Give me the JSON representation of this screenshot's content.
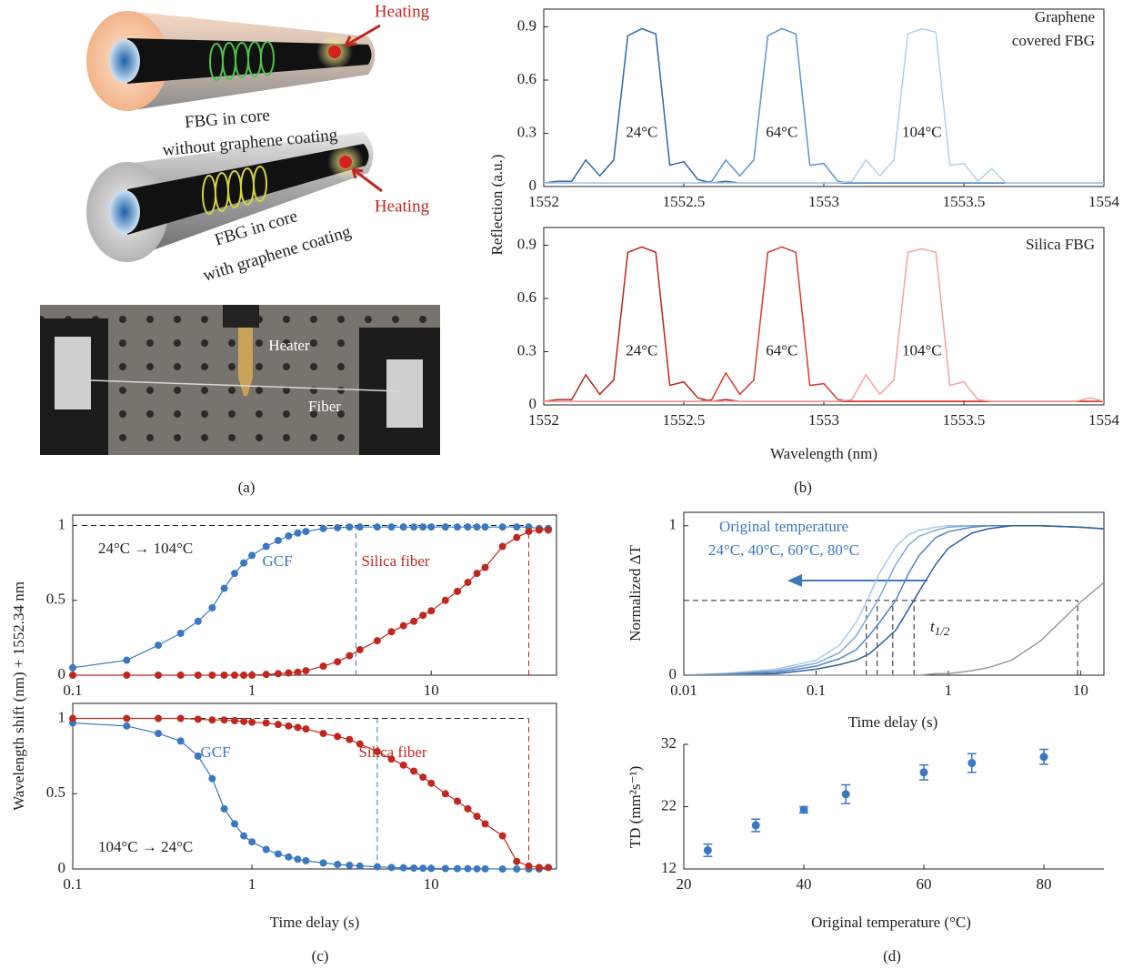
{
  "panel_labels": [
    "(a)",
    "(b)",
    "(c)",
    "(d)"
  ],
  "illustration": {
    "labels": [
      "Heating",
      "FBG in core",
      "without graphene coating",
      "Heating",
      "FBG in core",
      "with graphene coating",
      "Heater",
      "Fiber"
    ]
  },
  "chart_data": [
    {
      "type": "line",
      "annotations": [
        "Graphene",
        "covered FBG"
      ],
      "ylabel": "Reflection (a.u.)",
      "x": [
        1552,
        1552.05,
        1552.1,
        1552.15,
        1552.2,
        1552.25,
        1552.3,
        1552.35,
        1552.4,
        1552.45,
        1552.5,
        1552.55,
        1552.6,
        1552.65,
        1552.7,
        1552.75,
        1552.8,
        1552.85,
        1552.9,
        1552.95,
        1553,
        1553.05,
        1553.1,
        1553.15,
        1553.2,
        1553.25,
        1553.3,
        1553.35,
        1553.4,
        1553.45,
        1553.5,
        1553.55,
        1553.6,
        1553.65,
        1553.7,
        1553.75,
        1553.8,
        1553.85,
        1553.9,
        1553.95,
        1554
      ],
      "series": [
        {
          "name": "24°C",
          "color": "#2e68a3",
          "values": [
            0.02,
            0.03,
            0.03,
            0.15,
            0.06,
            0.15,
            0.85,
            0.89,
            0.86,
            0.12,
            0.14,
            0.04,
            0.02,
            0.03,
            0.02,
            0.02,
            0.02,
            0.02,
            0.02,
            0.02,
            0.02,
            0.02,
            0.02,
            0.02,
            0.02,
            0.02,
            0.02,
            0.02,
            0.02,
            0.02,
            0.02,
            0.02,
            0.02,
            0.02,
            0.02,
            0.02,
            0.02,
            0.02,
            0.02,
            0.02,
            0.02
          ]
        },
        {
          "name": "64°C",
          "color": "#5b93cc",
          "values": [
            0.02,
            0.02,
            0.02,
            0.02,
            0.02,
            0.02,
            0.02,
            0.02,
            0.02,
            0.02,
            0.02,
            0.02,
            0.03,
            0.15,
            0.06,
            0.15,
            0.85,
            0.89,
            0.86,
            0.12,
            0.13,
            0.03,
            0.02,
            0.02,
            0.02,
            0.02,
            0.02,
            0.02,
            0.02,
            0.02,
            0.02,
            0.02,
            0.02,
            0.02,
            0.02,
            0.02,
            0.02,
            0.02,
            0.02,
            0.02,
            0.02
          ]
        },
        {
          "name": "104°C",
          "color": "#b4cfea",
          "values": [
            0.02,
            0.02,
            0.02,
            0.02,
            0.02,
            0.02,
            0.02,
            0.02,
            0.02,
            0.02,
            0.02,
            0.02,
            0.02,
            0.02,
            0.02,
            0.02,
            0.02,
            0.02,
            0.02,
            0.02,
            0.02,
            0.02,
            0.03,
            0.15,
            0.06,
            0.15,
            0.86,
            0.89,
            0.87,
            0.12,
            0.13,
            0.03,
            0.1,
            0.02,
            0.02,
            0.02,
            0.02,
            0.02,
            0.02,
            0.02,
            0.02
          ]
        }
      ],
      "xlim": [
        1552,
        1554
      ],
      "xticks": [
        1552,
        1552.5,
        1553,
        1553.5,
        1554
      ],
      "ylim": [
        0,
        1
      ],
      "yticks": [
        0,
        0.3,
        0.6,
        0.9
      ]
    },
    {
      "type": "line",
      "annotations": [
        "Silica FBG"
      ],
      "xlabel": "Wavelength (nm)",
      "x": [
        1552,
        1552.05,
        1552.1,
        1552.15,
        1552.2,
        1552.25,
        1552.3,
        1552.35,
        1552.4,
        1552.45,
        1552.5,
        1552.55,
        1552.6,
        1552.65,
        1552.7,
        1552.75,
        1552.8,
        1552.85,
        1552.9,
        1552.95,
        1553,
        1553.05,
        1553.1,
        1553.15,
        1553.2,
        1553.25,
        1553.3,
        1553.35,
        1553.4,
        1553.45,
        1553.5,
        1553.55,
        1553.6,
        1553.65,
        1553.7,
        1553.75,
        1553.8,
        1553.85,
        1553.9,
        1553.95,
        1554
      ],
      "series": [
        {
          "name": "24°C",
          "color": "#b5261e",
          "values": [
            0.02,
            0.03,
            0.03,
            0.17,
            0.06,
            0.14,
            0.86,
            0.89,
            0.86,
            0.11,
            0.13,
            0.04,
            0.02,
            0.03,
            0.02,
            0.02,
            0.02,
            0.02,
            0.02,
            0.02,
            0.02,
            0.02,
            0.02,
            0.02,
            0.02,
            0.02,
            0.02,
            0.02,
            0.02,
            0.02,
            0.02,
            0.02,
            0.02,
            0.02,
            0.02,
            0.02,
            0.02,
            0.02,
            0.02,
            0.02,
            0.02
          ]
        },
        {
          "name": "64°C",
          "color": "#d63a2f",
          "values": [
            0.02,
            0.02,
            0.02,
            0.02,
            0.02,
            0.02,
            0.02,
            0.02,
            0.02,
            0.02,
            0.02,
            0.02,
            0.03,
            0.18,
            0.06,
            0.14,
            0.86,
            0.89,
            0.86,
            0.11,
            0.12,
            0.03,
            0.02,
            0.02,
            0.02,
            0.02,
            0.02,
            0.02,
            0.02,
            0.02,
            0.02,
            0.02,
            0.02,
            0.02,
            0.02,
            0.02,
            0.02,
            0.02,
            0.02,
            0.02,
            0.02
          ]
        },
        {
          "name": "104°C",
          "color": "#f2a3a0",
          "values": [
            0.02,
            0.02,
            0.02,
            0.02,
            0.02,
            0.02,
            0.02,
            0.02,
            0.02,
            0.02,
            0.02,
            0.02,
            0.02,
            0.02,
            0.02,
            0.02,
            0.02,
            0.02,
            0.02,
            0.02,
            0.02,
            0.02,
            0.03,
            0.17,
            0.06,
            0.14,
            0.86,
            0.88,
            0.86,
            0.11,
            0.13,
            0.03,
            0.02,
            0.02,
            0.02,
            0.02,
            0.02,
            0.02,
            0.02,
            0.04,
            0.02
          ]
        }
      ],
      "xlim": [
        1552,
        1554
      ],
      "xticks": [
        1552,
        1552.5,
        1553,
        1553.5,
        1554
      ],
      "ylim": [
        0,
        1
      ],
      "yticks": [
        0,
        0.3,
        0.6,
        0.9
      ]
    },
    {
      "type": "line",
      "x_scale": "log",
      "markers": true,
      "annotations": [
        "24°C → 104°C"
      ],
      "ylabel": "Wavelength shift (nm) + 1552.34 nm",
      "x": [
        0.1,
        0.2,
        0.3,
        0.4,
        0.5,
        0.6,
        0.7,
        0.8,
        0.9,
        1,
        1.2,
        1.4,
        1.6,
        1.8,
        2,
        2.5,
        3,
        3.5,
        4,
        5,
        6,
        7,
        8,
        9,
        10,
        12,
        14,
        16,
        18,
        20,
        25,
        30,
        35,
        40,
        45
      ],
      "series": [
        {
          "name": "GCF",
          "color": "#3a78c2",
          "values": [
            0.05,
            0.1,
            0.2,
            0.28,
            0.36,
            0.45,
            0.58,
            0.68,
            0.75,
            0.8,
            0.86,
            0.9,
            0.93,
            0.95,
            0.96,
            0.98,
            0.985,
            0.99,
            0.99,
            0.99,
            0.99,
            0.99,
            0.99,
            0.99,
            0.99,
            0.99,
            0.99,
            0.99,
            0.99,
            0.99,
            0.99,
            0.99,
            0.99,
            0.98,
            0.98
          ]
        },
        {
          "name": "Silica fiber",
          "color": "#c0281f",
          "values": [
            0,
            0,
            0,
            0,
            0,
            0,
            0,
            0,
            0,
            0,
            0.005,
            0.01,
            0.015,
            0.02,
            0.03,
            0.06,
            0.09,
            0.13,
            0.17,
            0.23,
            0.29,
            0.33,
            0.36,
            0.4,
            0.43,
            0.5,
            0.56,
            0.62,
            0.68,
            0.72,
            0.86,
            0.92,
            0.96,
            0.97,
            0.97
          ]
        }
      ],
      "hline": 1,
      "vlines": [
        {
          "x": 3.8,
          "color": "#3a78c2"
        },
        {
          "x": 35,
          "color": "#c0281f"
        }
      ],
      "xlim": [
        0.1,
        50
      ],
      "xticks": [
        0.1,
        1,
        10
      ],
      "ylim": [
        0,
        1.07
      ],
      "yticks": [
        0,
        0.5,
        1
      ]
    },
    {
      "type": "line",
      "x_scale": "log",
      "markers": true,
      "annotations": [
        "104°C → 24°C"
      ],
      "xlabel": "Time delay (s)",
      "x": [
        0.1,
        0.2,
        0.3,
        0.4,
        0.5,
        0.6,
        0.7,
        0.8,
        0.9,
        1,
        1.2,
        1.4,
        1.6,
        1.8,
        2,
        2.5,
        3,
        3.5,
        4,
        5,
        6,
        7,
        8,
        9,
        10,
        12,
        14,
        16,
        18,
        20,
        25,
        30,
        35,
        40,
        45
      ],
      "series": [
        {
          "name": "GCF",
          "color": "#3a78c2",
          "values": [
            0.97,
            0.95,
            0.9,
            0.85,
            0.75,
            0.6,
            0.4,
            0.3,
            0.22,
            0.18,
            0.13,
            0.1,
            0.08,
            0.065,
            0.055,
            0.04,
            0.03,
            0.025,
            0.02,
            0.015,
            0.01,
            0.008,
            0.006,
            0.005,
            0.004,
            0.003,
            0.002,
            0.002,
            0.001,
            0.001,
            0,
            0,
            0,
            0,
            0.01
          ]
        },
        {
          "name": "Silica fiber",
          "color": "#c0281f",
          "values": [
            1,
            1,
            1,
            1,
            0.995,
            0.99,
            0.99,
            0.985,
            0.98,
            0.975,
            0.97,
            0.96,
            0.95,
            0.94,
            0.93,
            0.9,
            0.88,
            0.86,
            0.83,
            0.78,
            0.73,
            0.69,
            0.65,
            0.61,
            0.57,
            0.5,
            0.45,
            0.4,
            0.35,
            0.3,
            0.22,
            0.05,
            0.02,
            0.01,
            0.01
          ]
        }
      ],
      "hline": 1,
      "vlines": [
        {
          "x": 5,
          "color": "#3a78c2"
        },
        {
          "x": 35,
          "color": "#c0281f"
        }
      ],
      "xlim": [
        0.1,
        50
      ],
      "xticks": [
        0.1,
        1,
        10
      ],
      "ylim": [
        0,
        1.1
      ],
      "yticks": [
        0,
        0.5,
        1
      ]
    },
    {
      "type": "line",
      "x_scale": "log",
      "annotations": [
        "Original temperature",
        "24°C, 40°C, 60°C, 80°C"
      ],
      "t_half_label": {
        "symbol": "t",
        "subscript": "1/2"
      },
      "xlabel": "Time delay (s)",
      "ylabel": "Normalized ΔT",
      "x": [
        0.01,
        0.02,
        0.05,
        0.1,
        0.15,
        0.2,
        0.25,
        0.3,
        0.4,
        0.5,
        0.6,
        0.8,
        1,
        1.5,
        2,
        3,
        5,
        10,
        15
      ],
      "series": [
        {
          "color": "#a9c8e8",
          "values": [
            0,
            0.01,
            0.04,
            0.1,
            0.2,
            0.35,
            0.52,
            0.68,
            0.86,
            0.94,
            0.97,
            0.99,
            1,
            1,
            1,
            1,
            1,
            0.99,
            0.98
          ]
        },
        {
          "color": "#7fa9d6",
          "values": [
            0,
            0.01,
            0.03,
            0.08,
            0.15,
            0.26,
            0.4,
            0.52,
            0.74,
            0.87,
            0.93,
            0.97,
            0.99,
            1,
            1,
            1,
            1,
            0.99,
            0.98
          ]
        },
        {
          "color": "#5585bf",
          "values": [
            0,
            0.005,
            0.02,
            0.06,
            0.11,
            0.17,
            0.26,
            0.35,
            0.5,
            0.68,
            0.8,
            0.92,
            0.96,
            0.99,
            1,
            1,
            1,
            0.99,
            0.98
          ]
        },
        {
          "color": "#2f609e",
          "values": [
            0,
            0,
            0.01,
            0.04,
            0.07,
            0.1,
            0.14,
            0.2,
            0.3,
            0.44,
            0.56,
            0.74,
            0.85,
            0.95,
            0.98,
            1,
            1,
            0.99,
            0.98
          ]
        },
        {
          "color": "#9a9a9a",
          "values": [
            0,
            0,
            0,
            0,
            0,
            0,
            0,
            0,
            0,
            0,
            0,
            0.01,
            0.01,
            0.03,
            0.05,
            0.1,
            0.23,
            0.49,
            0.62
          ]
        }
      ],
      "half_level": 0.5,
      "t_half": [
        0.24,
        0.29,
        0.38,
        0.55,
        9.5
      ],
      "xlim": [
        0.01,
        15
      ],
      "xticks": [
        0.01,
        0.1,
        1,
        10
      ],
      "ylim": [
        0,
        1.09
      ],
      "yticks": [
        0,
        1
      ]
    },
    {
      "type": "scatter",
      "xlabel": "Original temperature (°C)",
      "ylabel": "TD (mm²s⁻¹)",
      "color": "#3a78c2",
      "x": [
        24,
        32,
        40,
        47,
        60,
        68,
        80
      ],
      "values": [
        15,
        19,
        21.5,
        24,
        27.5,
        29,
        30
      ],
      "errors": [
        1,
        1,
        0.5,
        1.5,
        1.2,
        1.5,
        1.2
      ],
      "xlim": [
        20,
        90
      ],
      "xticks": [
        20,
        40,
        60,
        80
      ],
      "ylim": [
        12,
        32
      ],
      "yticks": [
        12,
        22,
        32
      ]
    }
  ]
}
